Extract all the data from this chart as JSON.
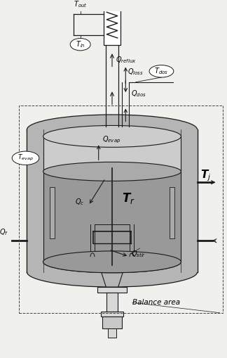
{
  "bg_color": "#f0f0ec",
  "lc": "#1a1a1a",
  "gray_jacket": "#b5b5b5",
  "gray_liquid": "#999999",
  "gray_vapor": "#cccccc",
  "gray_light": "#d8d8d8",
  "white": "#ffffff",
  "figsize": [
    3.24,
    5.09
  ],
  "dpi": 100,
  "labels": {
    "T_out": "T$_{out}$",
    "T_in": "T$_{in}$",
    "Q_reflux": "Q$_{reflux}$",
    "T_dos": "T$_{dos}$",
    "T_evap": "T$_{evap}$",
    "Q_loss": "Q$_{loss}$",
    "Q_dos": "Q$_{dos}$",
    "Q_evap": "Q$_{evap}$",
    "T_r": "T$_r$",
    "T_j": "T$_j$",
    "Q_c": "Q$_c$",
    "Q_f": "Q$_f$",
    "Q_stir": "Q$_{stir}$",
    "Balance_area": "Balance area"
  }
}
